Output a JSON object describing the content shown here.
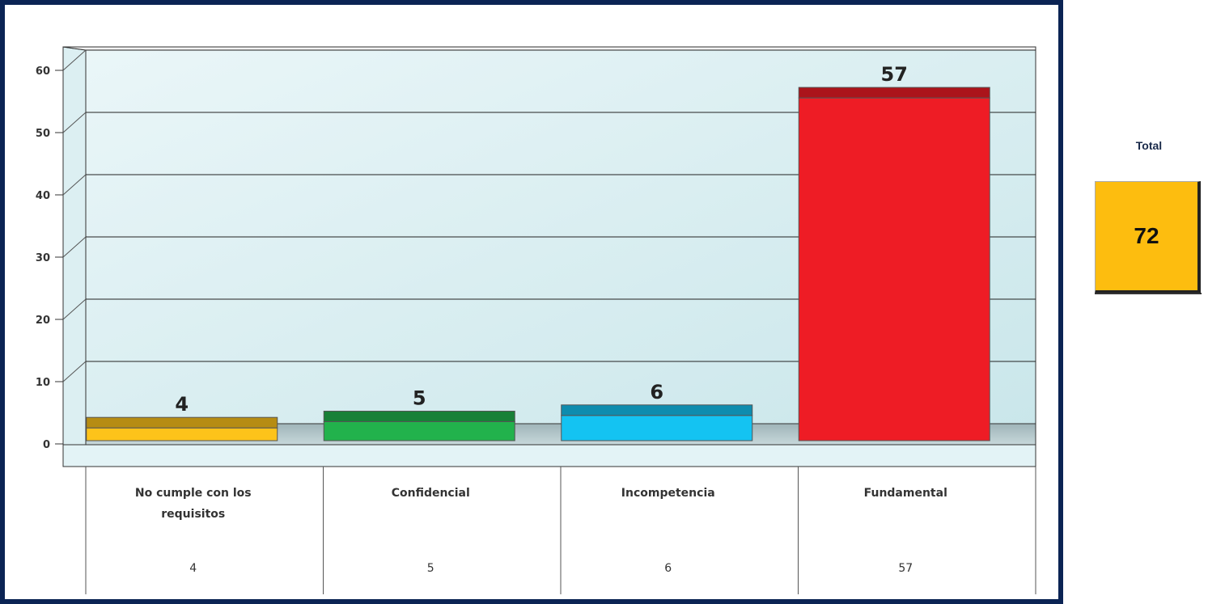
{
  "chart_data": {
    "type": "bar",
    "categories": [
      "No cumple con los requisitos",
      "Confidencial",
      "Incompetencia",
      "Fundamental"
    ],
    "values": [
      4,
      5,
      6,
      57
    ],
    "bar_colors": [
      "#fdc31a",
      "#22b24c",
      "#14c3f2",
      "#ee1c25"
    ],
    "y_ticks": [
      "0",
      "10",
      "20",
      "30",
      "40",
      "50",
      "60"
    ],
    "ylim": [
      0,
      60
    ],
    "grid": true,
    "data_table_values": [
      "4",
      "5",
      "6",
      "57"
    ]
  },
  "total": {
    "label": "Total",
    "value": "72",
    "color": "#fdbd0f"
  }
}
